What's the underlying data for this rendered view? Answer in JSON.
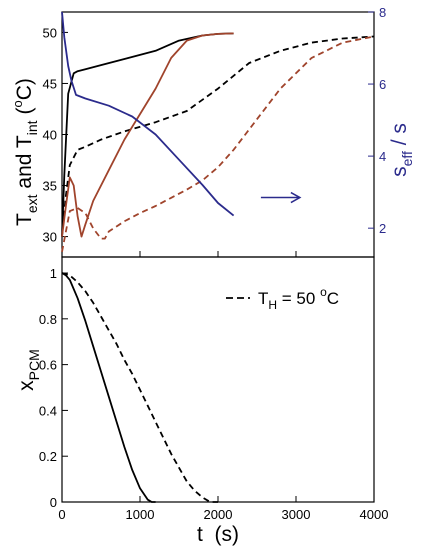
{
  "chart_data": [
    {
      "type": "line",
      "panel": "top",
      "xlim": [
        0,
        4000
      ],
      "ylim": [
        28,
        52
      ],
      "ylim_right": [
        1.2,
        8
      ],
      "yticks": [
        "30",
        "35",
        "40",
        "45",
        "50"
      ],
      "yticks_right": [
        "2",
        "4",
        "6",
        "8"
      ],
      "ylabel": "T_ext and T_int (°C)",
      "ylabel_right": "s_eff / s",
      "ylabel_parts": {
        "t": "T",
        "ext": "ext",
        "and": " and ",
        "int": "int",
        "unit_open": "(",
        "deg": "o",
        "unit_close": "C)"
      },
      "ylabel_right_parts": {
        "s": "s",
        "eff": "eff",
        "rest": " / s"
      },
      "series": [
        {
          "color": "#000000",
          "dash": "solid",
          "axis": "left",
          "x": [
            0,
            30,
            80,
            150,
            200,
            300,
            500,
            800,
            1200,
            1500,
            1800,
            2000,
            2200
          ],
          "y": [
            30,
            36,
            44,
            46,
            46.2,
            46.4,
            46.8,
            47.4,
            48.2,
            49.2,
            49.7,
            49.85,
            49.9
          ]
        },
        {
          "color": "#000000",
          "dash": "dashed",
          "axis": "left",
          "x": [
            0,
            50,
            100,
            200,
            300,
            500,
            800,
            1200,
            1600,
            2000,
            2400,
            2800,
            3200,
            3600,
            4000
          ],
          "y": [
            30,
            34,
            37,
            38.5,
            38.8,
            39.5,
            40.3,
            41.2,
            42.3,
            44.5,
            47,
            48.2,
            49,
            49.4,
            49.6
          ]
        },
        {
          "color": "#a0442c",
          "dash": "solid",
          "axis": "left",
          "x": [
            0,
            50,
            100,
            150,
            200,
            250,
            300,
            400,
            600,
            800,
            1000,
            1200,
            1400,
            1600,
            1800,
            2000,
            2200
          ],
          "y": [
            30,
            33,
            35.8,
            35,
            32,
            30,
            31.2,
            33.5,
            36.5,
            39.5,
            42,
            44.5,
            47.5,
            49.2,
            49.7,
            49.85,
            49.9
          ]
        },
        {
          "color": "#a0442c",
          "dash": "dashed",
          "axis": "left",
          "x": [
            0,
            100,
            200,
            300,
            400,
            500,
            550,
            600,
            800,
            1000,
            1200,
            1400,
            1600,
            1800,
            2000,
            2200,
            2400,
            2800,
            3200,
            3600,
            4000
          ],
          "y": [
            28.5,
            32.5,
            32.8,
            32.3,
            30.8,
            29.8,
            29.8,
            30.5,
            31.5,
            32.3,
            33,
            33.8,
            34.6,
            35.5,
            36.8,
            38.5,
            40.5,
            44.5,
            47.5,
            49,
            49.6
          ]
        },
        {
          "color": "#2b2b8c",
          "dash": "solid",
          "axis": "right",
          "x": [
            0,
            30,
            80,
            120,
            180,
            300,
            600,
            900,
            1200,
            1500,
            1800,
            2000,
            2200
          ],
          "y": [
            8,
            7.3,
            6.5,
            6.1,
            5.7,
            5.6,
            5.4,
            5.1,
            4.6,
            3.9,
            3.2,
            2.7,
            2.35
          ]
        }
      ],
      "annotations": [
        {
          "type": "arrow",
          "direction": "right",
          "color": "#2b2b8c",
          "x": [
            2550,
            3050
          ],
          "y_right": 2.85
        }
      ]
    },
    {
      "type": "line",
      "panel": "bottom",
      "xlim": [
        0,
        4000
      ],
      "ylim": [
        0,
        1.07
      ],
      "xticks": [
        "0",
        "1000",
        "2000",
        "3000",
        "4000"
      ],
      "yticks": [
        "0",
        "0.2",
        "0.4",
        "0.6",
        "0.8",
        "1"
      ],
      "xlabel": "t  (s)",
      "ylabel": "x_PCM",
      "ylabel_parts": {
        "x": "x",
        "sub": "PCM"
      },
      "legend": {
        "placement": "top-right",
        "style": "dashed",
        "label_parts": {
          "t": "T",
          "h": "H",
          "value": " = 50 ",
          "deg": "o",
          "unit": "C"
        }
      },
      "series": [
        {
          "color": "#000000",
          "dash": "solid",
          "x": [
            0,
            50,
            100,
            200,
            300,
            400,
            500,
            600,
            700,
            800,
            900,
            1000,
            1100,
            1150,
            1200
          ],
          "y": [
            1,
            0.99,
            0.97,
            0.89,
            0.79,
            0.68,
            0.57,
            0.46,
            0.35,
            0.24,
            0.14,
            0.06,
            0.01,
            0,
            0
          ]
        },
        {
          "color": "#000000",
          "dash": "dashed",
          "x": [
            0,
            100,
            200,
            300,
            400,
            500,
            600,
            700,
            800,
            900,
            1000,
            1100,
            1200,
            1300,
            1400,
            1500,
            1600,
            1700,
            1800,
            1900,
            2000
          ],
          "y": [
            1,
            0.99,
            0.96,
            0.92,
            0.87,
            0.81,
            0.75,
            0.69,
            0.62,
            0.56,
            0.49,
            0.42,
            0.35,
            0.28,
            0.21,
            0.15,
            0.09,
            0.05,
            0.02,
            0,
            0
          ]
        }
      ]
    }
  ]
}
